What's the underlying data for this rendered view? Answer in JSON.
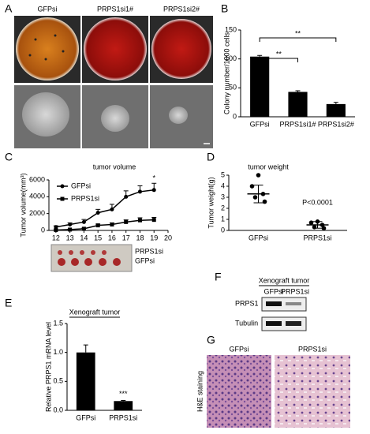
{
  "figure": {
    "panels": [
      "A",
      "B",
      "C",
      "D",
      "E",
      "F",
      "G"
    ],
    "dishes": {
      "labels": [
        "GFPsi",
        "PRPS1si1#",
        "PRPS1si2#"
      ]
    },
    "tumor_photo": {
      "labels": [
        "PRPS1si",
        "GFPsi"
      ]
    },
    "blot": {
      "title": "Xenograft tumor",
      "columns": [
        "GFPsi",
        "PRPS1si"
      ],
      "rows": [
        "PRPS1",
        "Tubulin"
      ]
    },
    "staining": {
      "columns": [
        "GFPsi",
        "PRPS1si"
      ],
      "side_label": "H&E staining"
    }
  },
  "chart_data": [
    {
      "type": "bar",
      "y_label": "Colony number/1000 cells",
      "categories": [
        "GFPsi",
        "PRPS1si1#",
        "PRPS1si2#"
      ],
      "values": [
        104,
        43,
        22
      ],
      "errors": [
        2,
        2,
        3
      ],
      "color": "#000000",
      "ylim": [
        0,
        150
      ],
      "yticks": [
        0,
        50,
        100,
        150
      ],
      "annotations": [
        "**",
        "**"
      ]
    },
    {
      "type": "line",
      "title": "tumor volume",
      "y_label": "Tumor volume(mm³)",
      "x": [
        12,
        13,
        14,
        15,
        16,
        17,
        18,
        19
      ],
      "series": [
        {
          "name": "GFPsi",
          "color": "#000000",
          "marker": "circle",
          "values": [
            400,
            700,
            1000,
            2100,
            2500,
            4000,
            4600,
            4800
          ],
          "errors": [
            150,
            200,
            300,
            400,
            600,
            700,
            700,
            800
          ]
        },
        {
          "name": "PRPS1si",
          "color": "#000000",
          "marker": "square",
          "values": [
            50,
            100,
            200,
            600,
            700,
            1000,
            1200,
            1250
          ],
          "errors": [
            30,
            50,
            80,
            150,
            200,
            250,
            300,
            300
          ]
        }
      ],
      "xlim": [
        11.5,
        20
      ],
      "xticks": [
        12,
        13,
        14,
        15,
        16,
        17,
        18,
        19,
        20
      ],
      "ylim": [
        0,
        6000
      ],
      "yticks": [
        0,
        2000,
        4000,
        6000
      ],
      "annotation": "*"
    },
    {
      "type": "scatter",
      "title": "tumor weight",
      "y_label": "Tumor weight(g)",
      "categories": [
        "GFPsi",
        "PRPS1si"
      ],
      "points": [
        [
          5.0,
          4.0,
          3.3,
          3.0,
          2.6
        ],
        [
          0.8,
          0.7,
          0.5,
          0.3,
          0.2
        ]
      ],
      "means": [
        3.3,
        0.5
      ],
      "sds": [
        0.8,
        0.3
      ],
      "color": "#000000",
      "ylim": [
        0,
        5
      ],
      "yticks": [
        0,
        1,
        2,
        3,
        4,
        5
      ],
      "annotation": "P<0.0001"
    },
    {
      "type": "bar",
      "title": "Xenograft tumor",
      "y_label": "Relative PRPS1 mRNA level",
      "categories": [
        "GFPsi",
        "PRPS1si"
      ],
      "values": [
        1.0,
        0.16
      ],
      "errors": [
        0.13,
        0.01
      ],
      "color": "#000000",
      "ylim": [
        0,
        1.5
      ],
      "yticks": [
        {
          "value": 0,
          "label": "0.0"
        },
        {
          "value": 0.5,
          "label": "0.5"
        },
        {
          "value": 1,
          "label": "1.0"
        },
        {
          "value": 1.5,
          "label": "1.5"
        }
      ],
      "annotations": [
        "***"
      ]
    }
  ]
}
